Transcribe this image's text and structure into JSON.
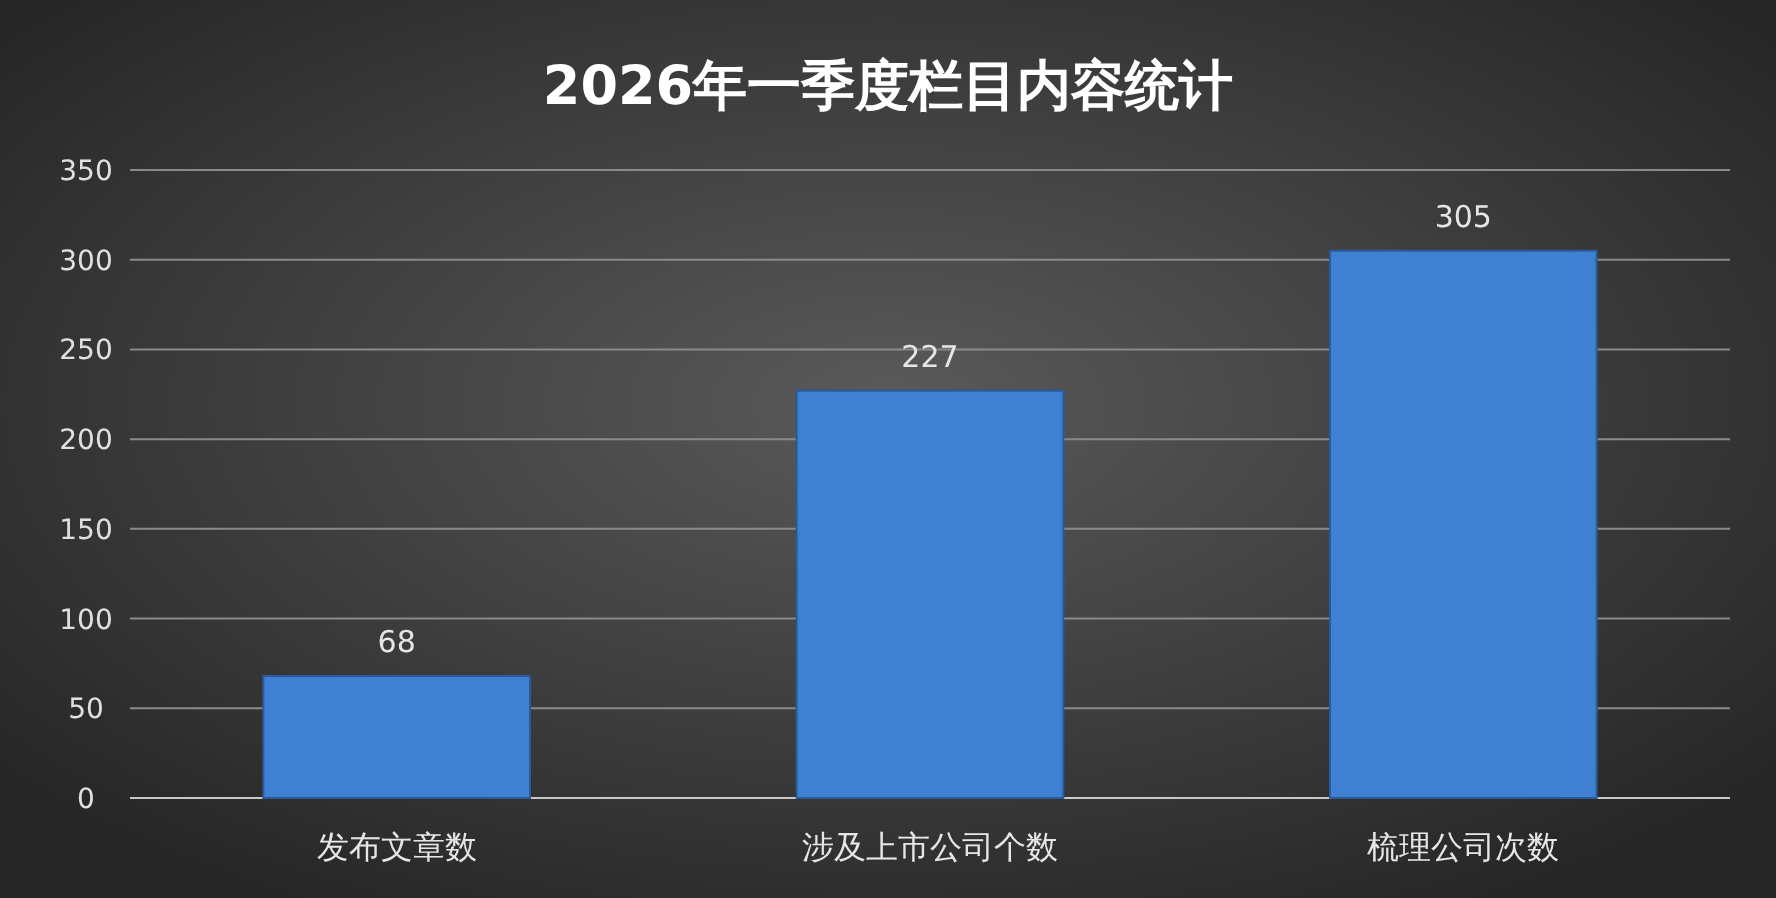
{
  "chart_data": {
    "type": "bar",
    "title": "2026年一季度栏目内容统计",
    "categories": [
      "发布文章数",
      "涉及上市公司个数",
      "梳理公司次数"
    ],
    "values": [
      68,
      227,
      305
    ],
    "color": "#3f80d2",
    "ylim": [
      0,
      350
    ],
    "yticks": [
      0,
      50,
      100,
      150,
      200,
      250,
      300,
      350
    ],
    "grid": "y",
    "data_labels": true
  }
}
